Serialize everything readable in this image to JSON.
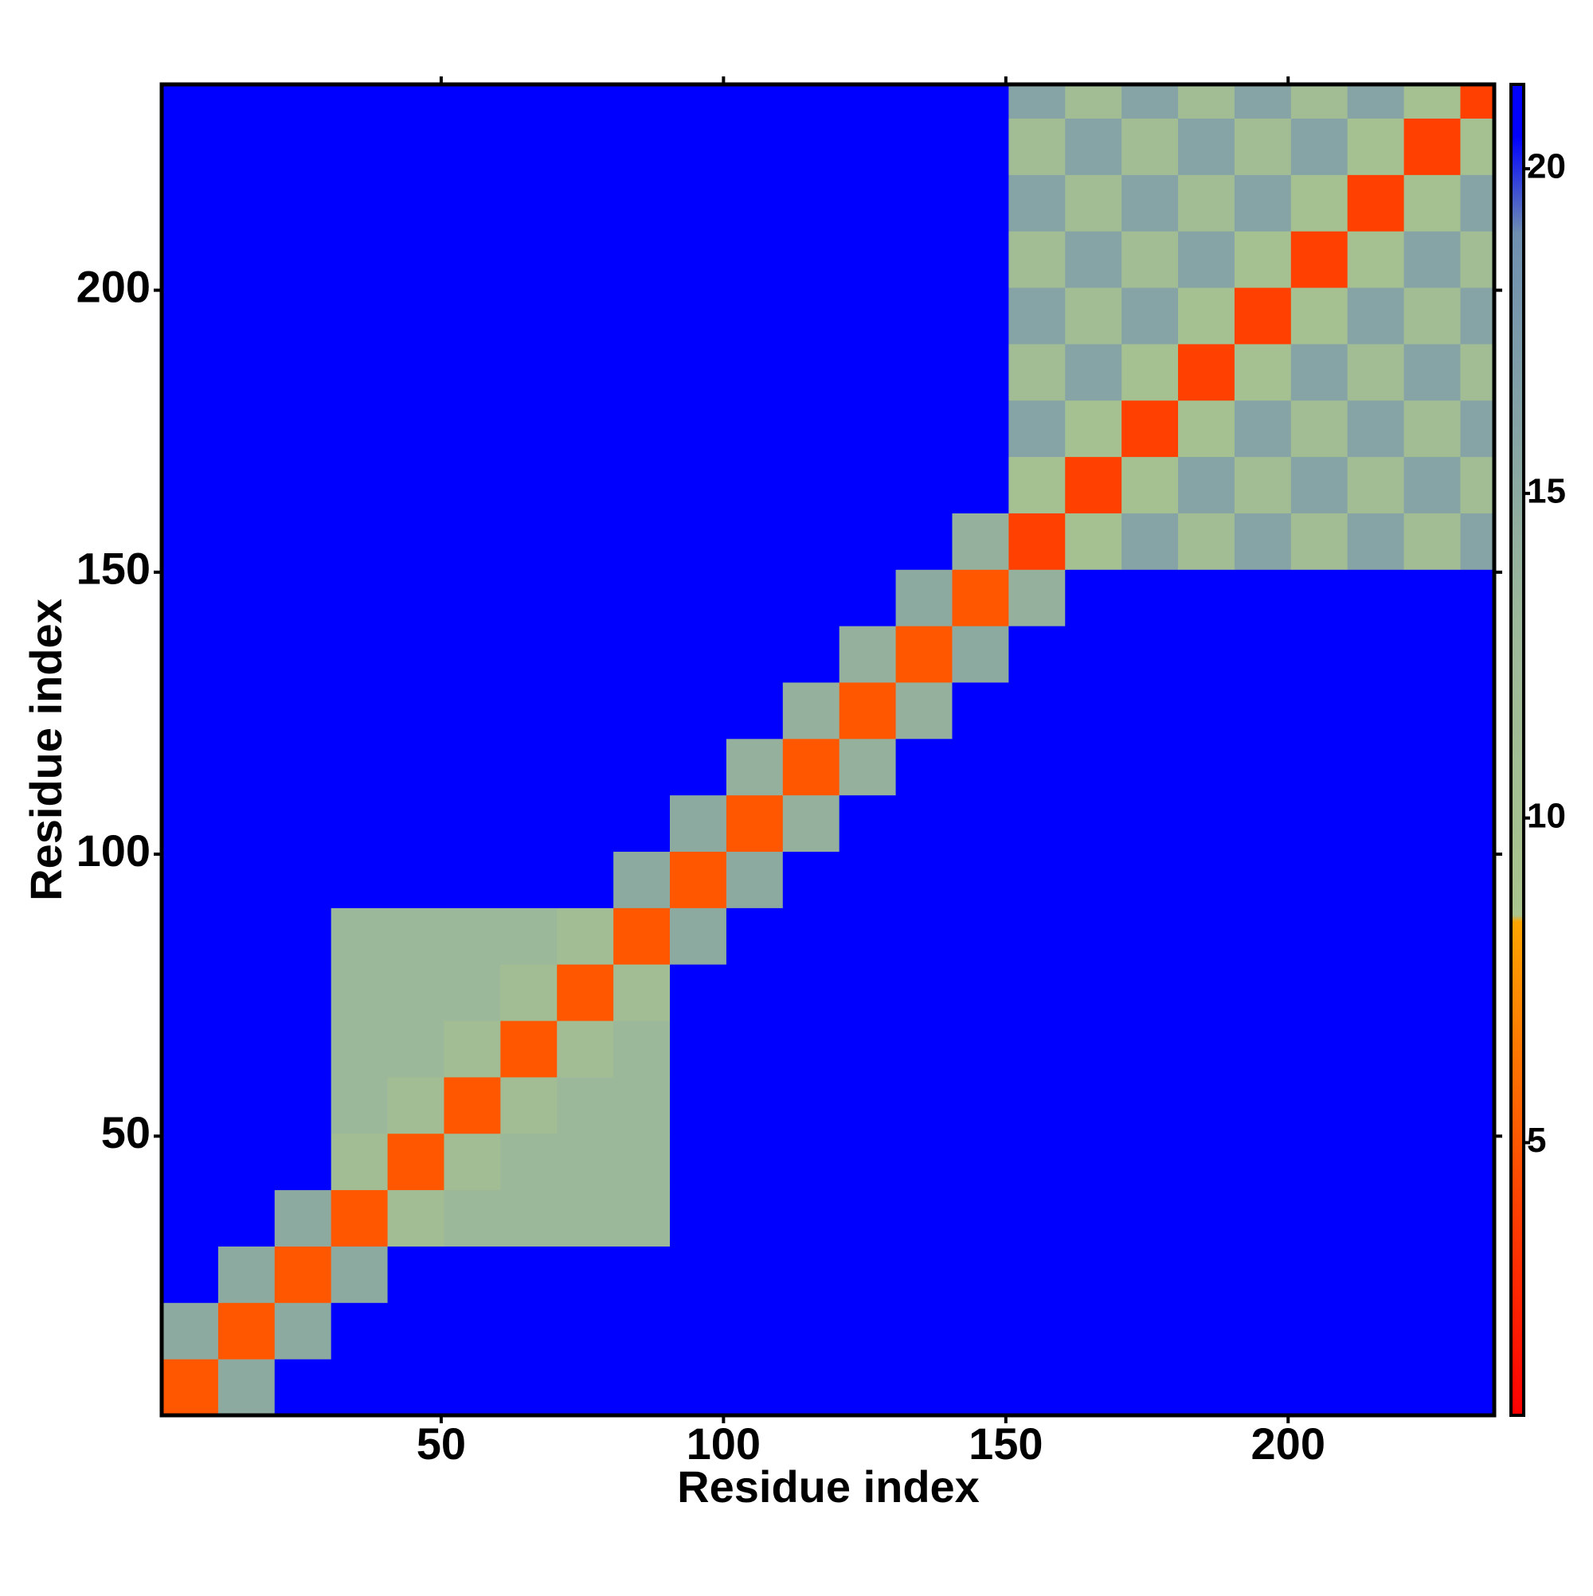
{
  "chart_data": {
    "type": "heatmap",
    "xlabel": "Residue index",
    "ylabel": "Residue index",
    "bins": [
      0.5,
      10.5,
      20.5,
      30.5,
      40.5,
      50.5,
      60.5,
      70.5,
      80.5,
      90.5,
      100.5,
      110.5,
      120.5,
      130.5,
      140.5,
      150.5,
      160.5,
      170.5,
      180.5,
      190.5,
      200.5,
      210.5,
      220.5,
      230.5,
      236.5
    ],
    "matrix": [
      [
        5,
        15,
        21,
        21,
        21,
        21,
        21,
        21,
        21,
        21,
        21,
        21,
        21,
        21,
        21,
        21,
        21,
        21,
        21,
        21,
        21,
        21,
        21,
        21
      ],
      [
        15,
        5,
        15,
        21,
        21,
        21,
        21,
        21,
        21,
        21,
        21,
        21,
        21,
        21,
        21,
        21,
        21,
        21,
        21,
        21,
        21,
        21,
        21,
        21
      ],
      [
        21,
        15,
        5,
        15,
        21,
        21,
        21,
        21,
        21,
        21,
        21,
        21,
        21,
        21,
        21,
        21,
        21,
        21,
        21,
        21,
        21,
        21,
        21,
        21
      ],
      [
        21,
        21,
        15,
        5,
        11,
        13,
        13,
        13,
        13,
        21,
        21,
        21,
        21,
        21,
        21,
        21,
        21,
        21,
        21,
        21,
        21,
        21,
        21,
        21
      ],
      [
        21,
        21,
        21,
        11,
        5,
        11,
        13,
        13,
        13,
        21,
        21,
        21,
        21,
        21,
        21,
        21,
        21,
        21,
        21,
        21,
        21,
        21,
        21,
        21
      ],
      [
        21,
        21,
        21,
        13,
        11,
        5,
        11,
        13,
        13,
        21,
        21,
        21,
        21,
        21,
        21,
        21,
        21,
        21,
        21,
        21,
        21,
        21,
        21,
        21
      ],
      [
        21,
        21,
        21,
        13,
        13,
        11,
        5,
        11,
        13,
        21,
        21,
        21,
        21,
        21,
        21,
        21,
        21,
        21,
        21,
        21,
        21,
        21,
        21,
        21
      ],
      [
        21,
        21,
        21,
        13,
        13,
        13,
        11,
        5,
        11,
        21,
        21,
        21,
        21,
        21,
        21,
        21,
        21,
        21,
        21,
        21,
        21,
        21,
        21,
        21
      ],
      [
        21,
        21,
        21,
        13,
        13,
        13,
        13,
        11,
        5,
        15,
        21,
        21,
        21,
        21,
        21,
        21,
        21,
        21,
        21,
        21,
        21,
        21,
        21,
        21
      ],
      [
        21,
        21,
        21,
        21,
        21,
        21,
        21,
        21,
        15,
        5,
        15,
        21,
        21,
        21,
        21,
        21,
        21,
        21,
        21,
        21,
        21,
        21,
        21,
        21
      ],
      [
        21,
        21,
        21,
        21,
        21,
        21,
        21,
        21,
        21,
        15,
        5,
        14,
        21,
        21,
        21,
        21,
        21,
        21,
        21,
        21,
        21,
        21,
        21,
        21
      ],
      [
        21,
        21,
        21,
        21,
        21,
        21,
        21,
        21,
        21,
        21,
        14,
        5,
        14,
        21,
        21,
        21,
        21,
        21,
        21,
        21,
        21,
        21,
        21,
        21
      ],
      [
        21,
        21,
        21,
        21,
        21,
        21,
        21,
        21,
        21,
        21,
        21,
        14,
        5,
        14,
        21,
        21,
        21,
        21,
        21,
        21,
        21,
        21,
        21,
        21
      ],
      [
        21,
        21,
        21,
        21,
        21,
        21,
        21,
        21,
        21,
        21,
        21,
        21,
        14,
        5,
        15,
        21,
        21,
        21,
        21,
        21,
        21,
        21,
        21,
        21
      ],
      [
        21,
        21,
        21,
        21,
        21,
        21,
        21,
        21,
        21,
        21,
        21,
        21,
        21,
        15,
        5,
        14,
        21,
        21,
        21,
        21,
        21,
        21,
        21,
        21
      ],
      [
        21,
        21,
        21,
        21,
        21,
        21,
        21,
        21,
        21,
        21,
        21,
        21,
        21,
        21,
        14,
        4,
        10,
        16,
        11,
        16,
        11,
        16,
        11,
        16
      ],
      [
        21,
        21,
        21,
        21,
        21,
        21,
        21,
        21,
        21,
        21,
        21,
        21,
        21,
        21,
        21,
        10,
        4,
        10,
        16,
        11,
        16,
        11,
        16,
        11
      ],
      [
        21,
        21,
        21,
        21,
        21,
        21,
        21,
        21,
        21,
        21,
        21,
        21,
        21,
        21,
        21,
        16,
        10,
        4,
        10,
        16,
        11,
        16,
        11,
        16
      ],
      [
        21,
        21,
        21,
        21,
        21,
        21,
        21,
        21,
        21,
        21,
        21,
        21,
        21,
        21,
        21,
        11,
        16,
        10,
        4,
        10,
        16,
        11,
        16,
        11
      ],
      [
        21,
        21,
        21,
        21,
        21,
        21,
        21,
        21,
        21,
        21,
        21,
        21,
        21,
        21,
        21,
        16,
        11,
        16,
        10,
        4,
        10,
        16,
        11,
        16
      ],
      [
        21,
        21,
        21,
        21,
        21,
        21,
        21,
        21,
        21,
        21,
        21,
        21,
        21,
        21,
        21,
        11,
        16,
        11,
        16,
        10,
        4,
        10,
        16,
        11
      ],
      [
        21,
        21,
        21,
        21,
        21,
        21,
        21,
        21,
        21,
        21,
        21,
        21,
        21,
        21,
        21,
        16,
        11,
        16,
        11,
        16,
        10,
        4,
        10,
        16
      ],
      [
        21,
        21,
        21,
        21,
        21,
        21,
        21,
        21,
        21,
        21,
        21,
        21,
        21,
        21,
        21,
        11,
        16,
        11,
        16,
        11,
        16,
        10,
        4,
        10
      ],
      [
        21,
        21,
        21,
        21,
        21,
        21,
        21,
        21,
        21,
        21,
        21,
        21,
        21,
        21,
        21,
        16,
        11,
        16,
        11,
        16,
        11,
        16,
        10,
        4
      ]
    ],
    "xlim": [
      0.5,
      236.5
    ],
    "ylim": [
      0.5,
      236.5
    ],
    "xticks": [
      50,
      100,
      150,
      200
    ],
    "yticks": [
      50,
      100,
      150,
      200
    ],
    "colorbar": {
      "lim": [
        0.8,
        21.3
      ],
      "ticks": [
        5,
        10,
        15,
        20
      ]
    },
    "colorscale": [
      {
        "value": 0.8,
        "color": "#ff0000"
      },
      {
        "value": 4,
        "color": "#ff4000"
      },
      {
        "value": 8.4,
        "color": "#ffa500"
      },
      {
        "value": 8.5,
        "color": "#a9c48c"
      },
      {
        "value": 13,
        "color": "#9cb89a"
      },
      {
        "value": 19,
        "color": "#6f8fb0"
      },
      {
        "value": 20.5,
        "color": "#0000ff"
      },
      {
        "value": 21.3,
        "color": "#0000ff"
      }
    ]
  }
}
